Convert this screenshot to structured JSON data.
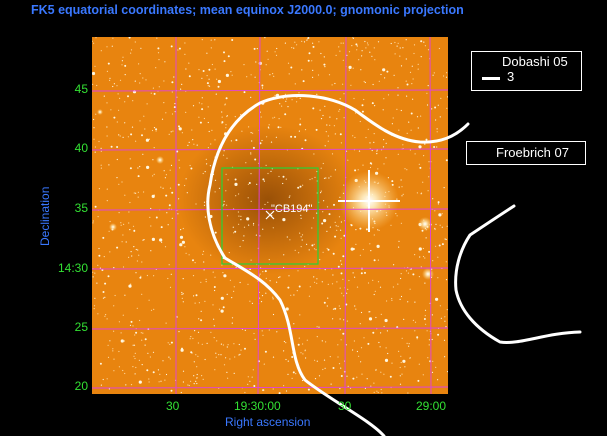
{
  "title": "FK5 equatorial coordinates; mean equinox J2000.0; gnomonic projection",
  "axes": {
    "x_label": "Right ascension",
    "y_label": "Declination",
    "x_ticks": [
      "30",
      "19:30:00",
      "30",
      "29:00"
    ],
    "y_ticks": [
      "45",
      "40",
      "35",
      "14:30",
      "25",
      "20"
    ]
  },
  "source_label": "\"CB194\"",
  "legend": {
    "dobashi": {
      "name": "Dobashi 05",
      "value": "3"
    },
    "froebrich": {
      "name": "Froebrich 07"
    }
  },
  "colors": {
    "image": "#e8840f",
    "grid": "#e040e0",
    "ticks": "#33e033",
    "labels": "#3a78ff",
    "contour": "#ffffff",
    "box": "#33cc33"
  }
}
